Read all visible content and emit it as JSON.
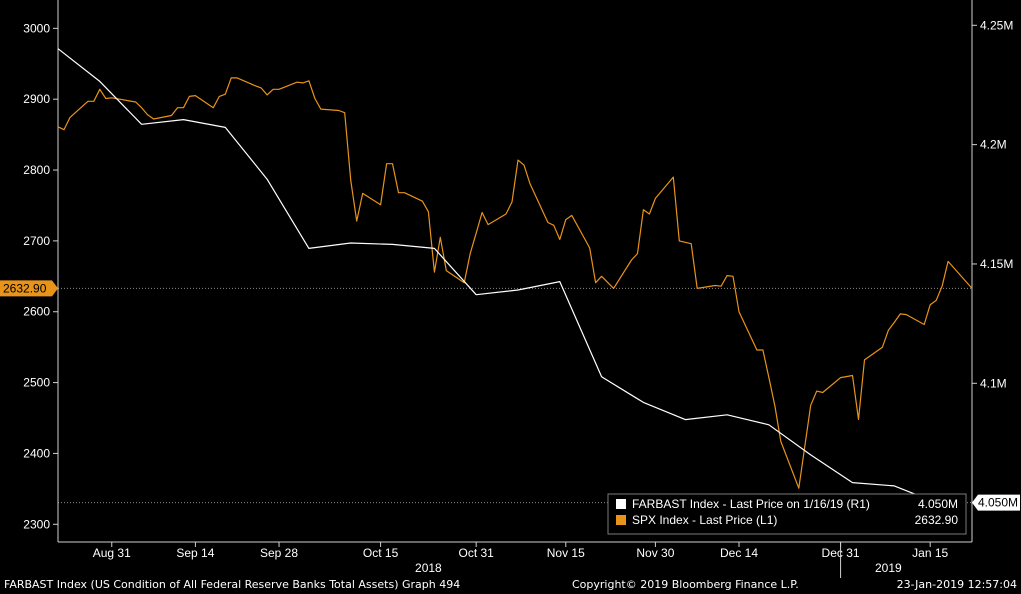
{
  "chart_data": {
    "type": "line",
    "left_axis": {
      "ylim": [
        2275,
        3040
      ],
      "ticks": [
        2300,
        2400,
        2500,
        2600,
        2700,
        2800,
        2900,
        3000
      ]
    },
    "right_axis": {
      "ylim": [
        4.0335,
        4.2606
      ],
      "ticks": [
        4.1,
        4.15,
        4.2,
        4.25
      ],
      "tick_labels": [
        "4.1M",
        "4.15M",
        "4.2M",
        "4.25M"
      ]
    },
    "x_range": [
      "2018-08-22",
      "2019-01-22"
    ],
    "x_ticks": [
      {
        "date": "2018-08-31",
        "label": "Aug 31"
      },
      {
        "date": "2018-09-14",
        "label": "Sep 14"
      },
      {
        "date": "2018-09-28",
        "label": "Sep 28"
      },
      {
        "date": "2018-10-15",
        "label": "Oct 15"
      },
      {
        "date": "2018-10-31",
        "label": "Oct 31"
      },
      {
        "date": "2018-11-15",
        "label": "Nov 15"
      },
      {
        "date": "2018-11-30",
        "label": "Nov 30"
      },
      {
        "date": "2018-12-14",
        "label": "Dec 14"
      },
      {
        "date": "2018-12-31",
        "label": "Dec 31"
      },
      {
        "date": "2019-01-15",
        "label": "Jan 15"
      }
    ],
    "year_labels": [
      {
        "date": "2018-10-23",
        "label": "2018"
      },
      {
        "date": "2019-01-08",
        "label": "2019"
      }
    ],
    "year_divider_date": "2018-12-31",
    "series": [
      {
        "key": "spx",
        "axis": "left",
        "color": "#e8931a",
        "points": [
          [
            "2018-08-22",
            2861
          ],
          [
            "2018-08-23",
            2857
          ],
          [
            "2018-08-24",
            2874
          ],
          [
            "2018-08-27",
            2897
          ],
          [
            "2018-08-28",
            2897
          ],
          [
            "2018-08-29",
            2914
          ],
          [
            "2018-08-30",
            2901
          ],
          [
            "2018-08-31",
            2902
          ],
          [
            "2018-09-04",
            2896
          ],
          [
            "2018-09-05",
            2888
          ],
          [
            "2018-09-06",
            2878
          ],
          [
            "2018-09-07",
            2872
          ],
          [
            "2018-09-10",
            2877
          ],
          [
            "2018-09-11",
            2888
          ],
          [
            "2018-09-12",
            2888
          ],
          [
            "2018-09-13",
            2904
          ],
          [
            "2018-09-14",
            2905
          ],
          [
            "2018-09-17",
            2888
          ],
          [
            "2018-09-18",
            2904
          ],
          [
            "2018-09-19",
            2907
          ],
          [
            "2018-09-20",
            2930
          ],
          [
            "2018-09-21",
            2930
          ],
          [
            "2018-09-24",
            2919
          ],
          [
            "2018-09-25",
            2916
          ],
          [
            "2018-09-26",
            2906
          ],
          [
            "2018-09-27",
            2914
          ],
          [
            "2018-09-28",
            2914
          ],
          [
            "2018-10-01",
            2924
          ],
          [
            "2018-10-02",
            2923
          ],
          [
            "2018-10-03",
            2926
          ],
          [
            "2018-10-04",
            2901
          ],
          [
            "2018-10-05",
            2886
          ],
          [
            "2018-10-08",
            2884
          ],
          [
            "2018-10-09",
            2881
          ],
          [
            "2018-10-10",
            2786
          ],
          [
            "2018-10-11",
            2728
          ],
          [
            "2018-10-12",
            2767
          ],
          [
            "2018-10-15",
            2751
          ],
          [
            "2018-10-16",
            2809
          ],
          [
            "2018-10-17",
            2809
          ],
          [
            "2018-10-18",
            2768
          ],
          [
            "2018-10-19",
            2768
          ],
          [
            "2018-10-22",
            2756
          ],
          [
            "2018-10-23",
            2741
          ],
          [
            "2018-10-24",
            2656
          ],
          [
            "2018-10-25",
            2705
          ],
          [
            "2018-10-26",
            2658
          ],
          [
            "2018-10-29",
            2641
          ],
          [
            "2018-10-30",
            2682
          ],
          [
            "2018-10-31",
            2711
          ],
          [
            "2018-11-01",
            2740
          ],
          [
            "2018-11-02",
            2723
          ],
          [
            "2018-11-05",
            2738
          ],
          [
            "2018-11-06",
            2755
          ],
          [
            "2018-11-07",
            2814
          ],
          [
            "2018-11-08",
            2807
          ],
          [
            "2018-11-09",
            2781
          ],
          [
            "2018-11-12",
            2726
          ],
          [
            "2018-11-13",
            2722
          ],
          [
            "2018-11-14",
            2702
          ],
          [
            "2018-11-15",
            2730
          ],
          [
            "2018-11-16",
            2736
          ],
          [
            "2018-11-19",
            2690
          ],
          [
            "2018-11-20",
            2641
          ],
          [
            "2018-11-21",
            2650
          ],
          [
            "2018-11-23",
            2633
          ],
          [
            "2018-11-26",
            2673
          ],
          [
            "2018-11-27",
            2682
          ],
          [
            "2018-11-28",
            2744
          ],
          [
            "2018-11-29",
            2738
          ],
          [
            "2018-11-30",
            2760
          ],
          [
            "2018-12-03",
            2790
          ],
          [
            "2018-12-04",
            2700
          ],
          [
            "2018-12-06",
            2696
          ],
          [
            "2018-12-07",
            2633
          ],
          [
            "2018-12-10",
            2637
          ],
          [
            "2018-12-11",
            2636
          ],
          [
            "2018-12-12",
            2651
          ],
          [
            "2018-12-13",
            2650
          ],
          [
            "2018-12-14",
            2600
          ],
          [
            "2018-12-17",
            2546
          ],
          [
            "2018-12-18",
            2546
          ],
          [
            "2018-12-19",
            2507
          ],
          [
            "2018-12-20",
            2467
          ],
          [
            "2018-12-21",
            2417
          ],
          [
            "2018-12-24",
            2351
          ],
          [
            "2018-12-26",
            2468
          ],
          [
            "2018-12-27",
            2488
          ],
          [
            "2018-12-28",
            2486
          ],
          [
            "2018-12-31",
            2507
          ],
          [
            "2019-01-02",
            2510
          ],
          [
            "2019-01-03",
            2448
          ],
          [
            "2019-01-04",
            2532
          ],
          [
            "2019-01-07",
            2550
          ],
          [
            "2019-01-08",
            2574
          ],
          [
            "2019-01-09",
            2585
          ],
          [
            "2019-01-10",
            2597
          ],
          [
            "2019-01-11",
            2596
          ],
          [
            "2019-01-14",
            2582
          ],
          [
            "2019-01-15",
            2610
          ],
          [
            "2019-01-16",
            2616
          ],
          [
            "2019-01-17",
            2636
          ],
          [
            "2019-01-18",
            2671
          ],
          [
            "2019-01-22",
            2633
          ]
        ]
      },
      {
        "key": "farbast",
        "axis": "right",
        "color": "#ffffff",
        "points": [
          [
            "2018-08-22",
            4.2402
          ],
          [
            "2018-08-29",
            4.2265
          ],
          [
            "2018-09-05",
            4.2085
          ],
          [
            "2018-09-12",
            4.2105
          ],
          [
            "2018-09-19",
            4.2072
          ],
          [
            "2018-09-26",
            4.1855
          ],
          [
            "2018-10-03",
            4.1565
          ],
          [
            "2018-10-10",
            4.1588
          ],
          [
            "2018-10-17",
            4.1582
          ],
          [
            "2018-10-24",
            4.1565
          ],
          [
            "2018-10-31",
            4.1371
          ],
          [
            "2018-11-07",
            4.1391
          ],
          [
            "2018-11-14",
            4.1426
          ],
          [
            "2018-11-21",
            4.1027
          ],
          [
            "2018-11-28",
            4.092
          ],
          [
            "2018-12-05",
            4.0848
          ],
          [
            "2018-12-12",
            4.0868
          ],
          [
            "2018-12-19",
            4.0826
          ],
          [
            "2018-12-26",
            4.07
          ],
          [
            "2019-01-02",
            4.0584
          ],
          [
            "2019-01-09",
            4.057
          ],
          [
            "2019-01-16",
            4.05
          ]
        ]
      }
    ],
    "last_value_tags": [
      {
        "series": "spx",
        "axis": "left",
        "value": 2632.9,
        "label": "2632.90"
      },
      {
        "series": "farbast",
        "axis": "right",
        "value": 4.05,
        "label": "4.050M"
      }
    ],
    "legend": {
      "placement": "bottom-right",
      "entries": [
        {
          "series": "farbast",
          "label": "FARBAST Index - Last Price on 1/16/19 (R1)",
          "value": "4.050M",
          "color": "#ffffff"
        },
        {
          "series": "spx",
          "label": "SPX Index - Last Price (L1)",
          "value": "2632.90",
          "color": "#e8931a"
        }
      ]
    },
    "grid": "horizontal-dotted"
  },
  "footer": {
    "left": "FARBAST Index (US Condition of All Federal Reserve Banks Total Assets) Graph 494",
    "center": "Copyright© 2019 Bloomberg Finance L.P.",
    "right": "23-Jan-2019 12:57:04"
  },
  "colors": {
    "background": "#000000",
    "spx": "#e8931a",
    "farbast": "#ffffff",
    "grid": "#8a8a8a"
  }
}
